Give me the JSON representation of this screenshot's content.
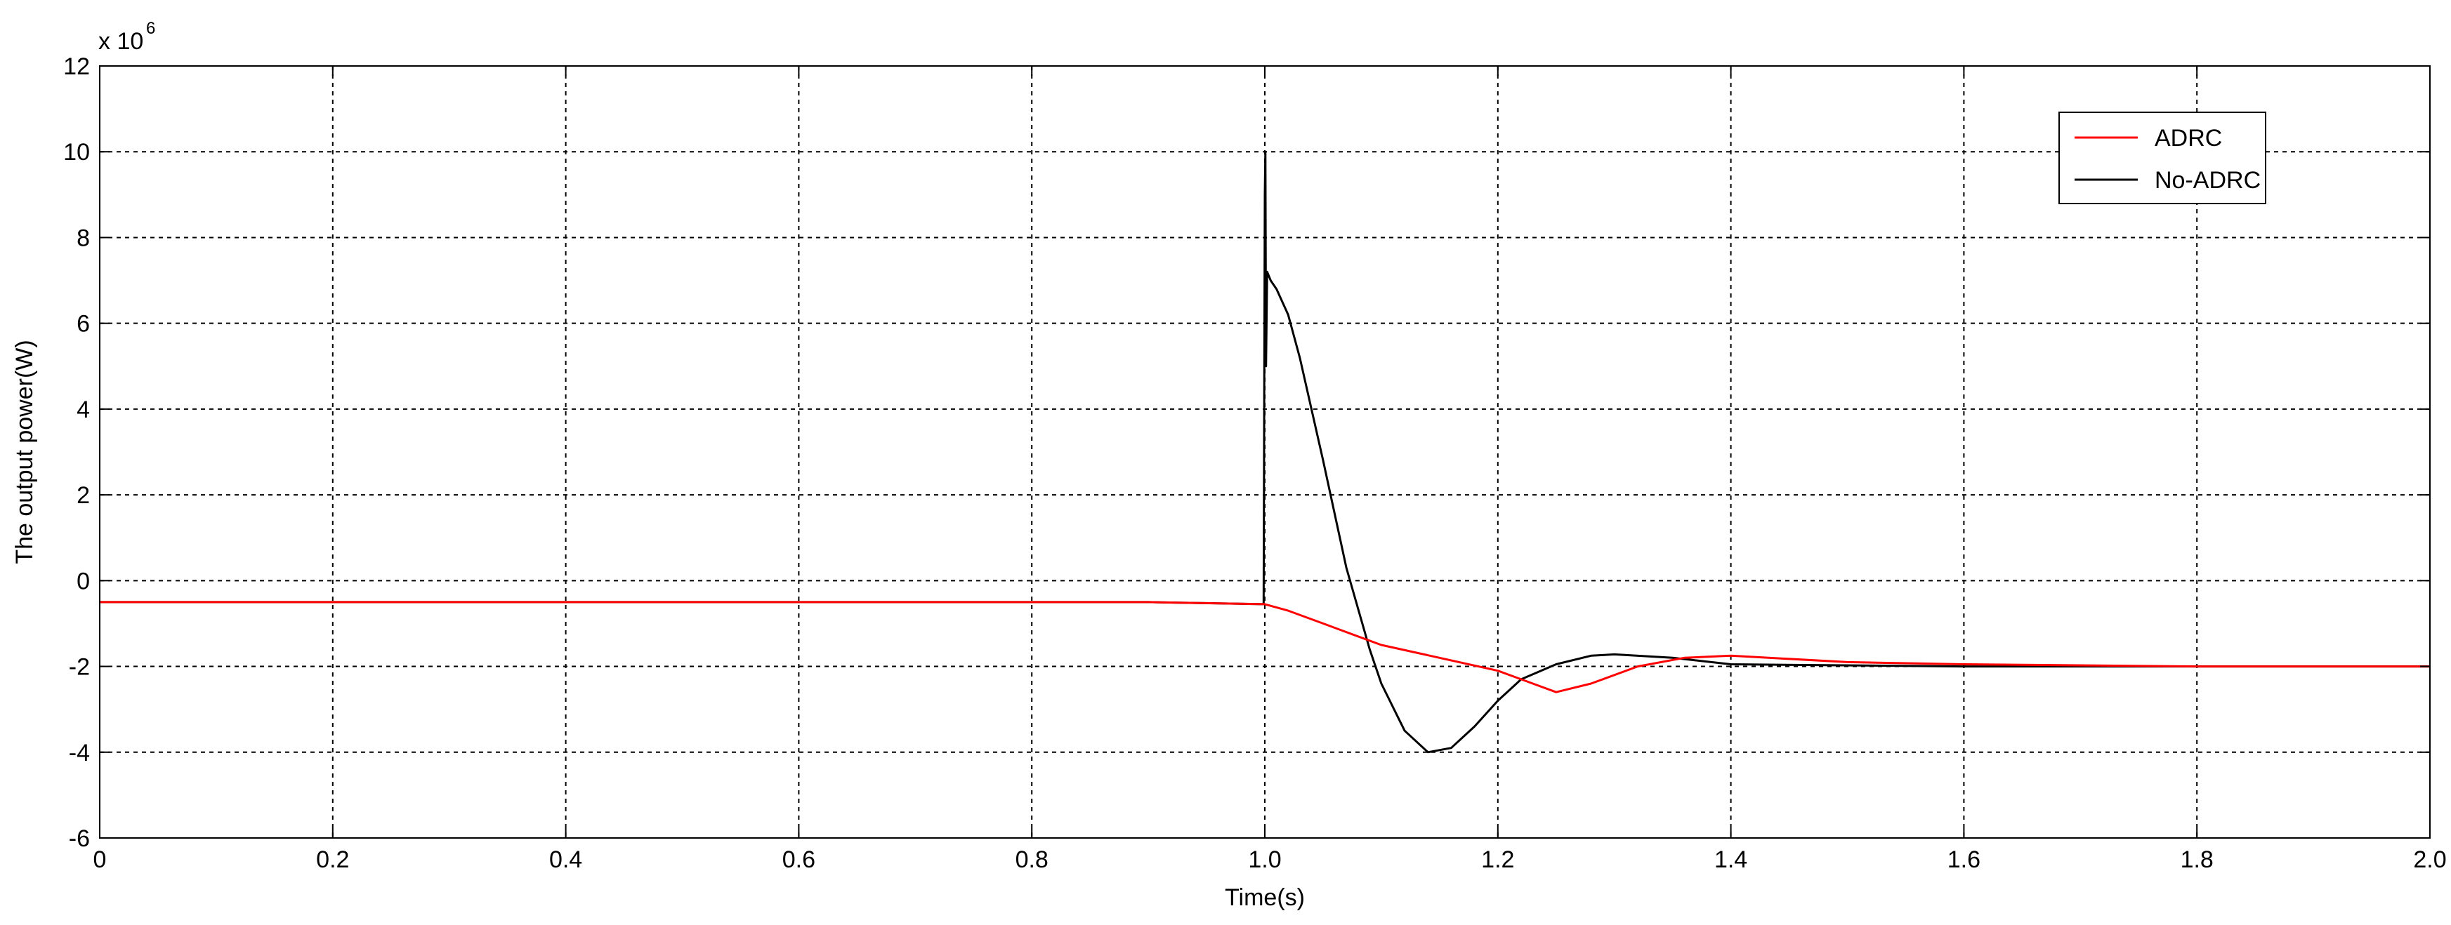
{
  "chart_data": {
    "type": "line",
    "xlabel": "Time(s)",
    "ylabel": "The output power(W)",
    "y_multiplier_label": "x 10",
    "y_multiplier_exponent": "6",
    "xlim": [
      0,
      2.0
    ],
    "ylim": [
      -6,
      12
    ],
    "x_ticks": [
      0,
      0.2,
      0.4,
      0.6,
      0.8,
      1.0,
      1.2,
      1.4,
      1.6,
      1.8,
      2.0
    ],
    "x_tick_labels": [
      "0",
      "0.2",
      "0.4",
      "0.6",
      "0.8",
      "1.0",
      "1.2",
      "1.4",
      "1.6",
      "1.8",
      "2.0"
    ],
    "y_ticks": [
      -6,
      -4,
      -2,
      0,
      2,
      4,
      6,
      8,
      10,
      12
    ],
    "y_tick_labels": [
      "-6",
      "-4",
      "-2",
      "0",
      "2",
      "4",
      "6",
      "8",
      "10",
      "12"
    ],
    "grid": true,
    "legend_position": "top-right",
    "series": [
      {
        "name": "ADRC",
        "color": "#ff0000",
        "x": [
          0,
          0.5,
          0.9,
          1.0,
          1.02,
          1.05,
          1.08,
          1.1,
          1.15,
          1.2,
          1.23,
          1.25,
          1.28,
          1.32,
          1.36,
          1.4,
          1.5,
          1.6,
          1.8,
          2.0
        ],
        "y": [
          -0.5,
          -0.5,
          -0.5,
          -0.55,
          -0.7,
          -1.0,
          -1.3,
          -1.5,
          -1.8,
          -2.1,
          -2.4,
          -2.6,
          -2.4,
          -2.0,
          -1.8,
          -1.75,
          -1.9,
          -1.95,
          -2.0,
          -2.0
        ]
      },
      {
        "name": "No-ADRC",
        "color": "#000000",
        "x": [
          0,
          0.5,
          0.9,
          0.999,
          1.0,
          1.0005,
          1.001,
          1.002,
          1.005,
          1.01,
          1.02,
          1.03,
          1.05,
          1.07,
          1.09,
          1.1,
          1.12,
          1.14,
          1.16,
          1.18,
          1.2,
          1.22,
          1.25,
          1.28,
          1.3,
          1.35,
          1.4,
          1.6,
          1.8,
          2.0
        ],
        "y": [
          -0.5,
          -0.5,
          -0.5,
          -0.55,
          9.0,
          10.0,
          5.0,
          7.2,
          7.0,
          6.8,
          6.2,
          5.2,
          2.8,
          0.3,
          -1.6,
          -2.4,
          -3.5,
          -4.0,
          -3.9,
          -3.4,
          -2.8,
          -2.3,
          -1.95,
          -1.75,
          -1.72,
          -1.8,
          -1.95,
          -2.0,
          -2.0,
          -2.0
        ]
      }
    ]
  }
}
